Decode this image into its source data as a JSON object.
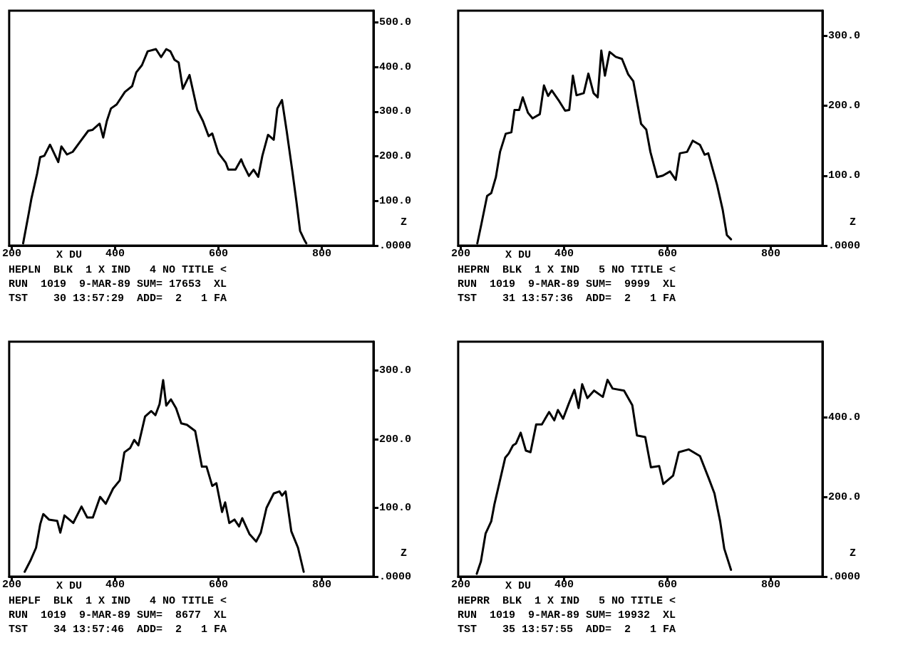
{
  "chart_data": [
    {
      "type": "line",
      "xlabel": "X DU",
      "ylabel": "Z",
      "color": "#000000",
      "xlim": [
        195,
        900
      ],
      "xticks": [
        200,
        400,
        600,
        800
      ],
      "ylim": [
        0,
        526
      ],
      "yticks": [
        {
          "value": 0,
          "label": ".0000"
        },
        {
          "value": 100,
          "label": "100.0"
        },
        {
          "value": 200,
          "label": "200.0"
        },
        {
          "value": 300,
          "label": "300.0"
        },
        {
          "value": 400,
          "label": "400.0"
        },
        {
          "value": 500,
          "label": "500.0"
        }
      ],
      "annotations": [
        "HEPLN  BLK  1 X IND   4 NO TITLE <",
        "RUN  1019  9-MAR-89 SUM= 17653  XL",
        "TST    30 13:57:29  ADD=  2   1 FA"
      ],
      "x": [
        222,
        233,
        238,
        249,
        255,
        263,
        274,
        290,
        296,
        307,
        318,
        332,
        348,
        356,
        370,
        377,
        384,
        392,
        403,
        419,
        433,
        441,
        452,
        463,
        479,
        489,
        499,
        507,
        515,
        523,
        531,
        544,
        559,
        570,
        581,
        588,
        600,
        614,
        619,
        633,
        644,
        649,
        659,
        668,
        677,
        685,
        696,
        707,
        714,
        723,
        732,
        743,
        751,
        758,
        767,
        770
      ],
      "values": [
        5,
        73,
        105,
        161,
        198,
        201,
        226,
        187,
        222,
        204,
        210,
        232,
        257,
        259,
        273,
        242,
        279,
        307,
        316,
        344,
        357,
        388,
        404,
        435,
        440,
        422,
        440,
        435,
        416,
        410,
        351,
        382,
        304,
        279,
        245,
        251,
        207,
        186,
        170,
        170,
        193,
        179,
        156,
        170,
        154,
        201,
        248,
        237,
        307,
        326,
        257,
        167,
        98,
        33,
        11,
        5
      ]
    },
    {
      "type": "line",
      "xlabel": "X DU",
      "ylabel": "Z",
      "color": "#000000",
      "xlim": [
        195,
        900
      ],
      "xticks": [
        200,
        400,
        600,
        800
      ],
      "ylim": [
        0,
        336
      ],
      "yticks": [
        {
          "value": 0,
          "label": ".0000"
        },
        {
          "value": 100,
          "label": "100.0"
        },
        {
          "value": 200,
          "label": "200.0"
        },
        {
          "value": 300,
          "label": "300.0"
        }
      ],
      "annotations": [
        "HEPRN  BLK  1 X IND   5 NO TITLE <",
        "RUN  1019  9-MAR-89 SUM=  9999  XL",
        "TST    31 13:57:36  ADD=  2   1 FA"
      ],
      "x": [
        232,
        240,
        251,
        259,
        268,
        276,
        287,
        298,
        304,
        313,
        320,
        330,
        339,
        353,
        361,
        369,
        376,
        391,
        402,
        410,
        417,
        424,
        438,
        447,
        457,
        465,
        472,
        479,
        488,
        500,
        512,
        524,
        534,
        549,
        559,
        567,
        580,
        591,
        605,
        616,
        624,
        638,
        649,
        663,
        672,
        679,
        696,
        707,
        715,
        723
      ],
      "values": [
        3,
        31,
        71,
        75,
        98,
        134,
        160,
        162,
        194,
        194,
        212,
        190,
        182,
        188,
        229,
        214,
        222,
        206,
        193,
        194,
        243,
        215,
        218,
        246,
        218,
        212,
        279,
        243,
        277,
        270,
        267,
        245,
        235,
        174,
        166,
        134,
        98,
        100,
        106,
        94,
        132,
        134,
        150,
        144,
        130,
        132,
        87,
        51,
        15,
        9
      ]
    },
    {
      "type": "line",
      "xlabel": "X DU",
      "ylabel": "Z",
      "color": "#000000",
      "xlim": [
        195,
        900
      ],
      "xticks": [
        200,
        400,
        600,
        800
      ],
      "ylim": [
        0,
        342
      ],
      "yticks": [
        {
          "value": 0,
          "label": ".0000"
        },
        {
          "value": 100,
          "label": "100.0"
        },
        {
          "value": 200,
          "label": "200.0"
        },
        {
          "value": 300,
          "label": "300.0"
        }
      ],
      "annotations": [
        "HEPLF  BLK  1 X IND   4 NO TITLE <",
        "RUN  1019  9-MAR-89 SUM=  8677  XL",
        "TST    34 13:57:46  ADD=  2   1 FA"
      ],
      "x": [
        225,
        236,
        247,
        255,
        261,
        272,
        288,
        294,
        302,
        319,
        335,
        346,
        357,
        371,
        382,
        396,
        409,
        418,
        429,
        437,
        445,
        458,
        470,
        478,
        486,
        493,
        499,
        508,
        518,
        528,
        539,
        555,
        568,
        577,
        588,
        596,
        607,
        613,
        621,
        631,
        640,
        646,
        660,
        673,
        682,
        693,
        707,
        718,
        723,
        730,
        741,
        754,
        765
      ],
      "values": [
        7,
        23,
        42,
        76,
        91,
        83,
        81,
        64,
        89,
        78,
        102,
        86,
        86,
        116,
        106,
        128,
        140,
        181,
        187,
        199,
        191,
        233,
        241,
        235,
        251,
        286,
        249,
        258,
        245,
        223,
        221,
        212,
        160,
        160,
        132,
        136,
        94,
        108,
        78,
        83,
        73,
        85,
        62,
        51,
        64,
        100,
        121,
        124,
        118,
        124,
        66,
        42,
        7
      ]
    },
    {
      "type": "line",
      "xlabel": "X DU",
      "ylabel": "Z",
      "color": "#000000",
      "xlim": [
        195,
        900
      ],
      "xticks": [
        200,
        400,
        600,
        800
      ],
      "ylim": [
        0,
        591
      ],
      "yticks": [
        {
          "value": 0,
          "label": ".0000"
        },
        {
          "value": 200,
          "label": "200.0"
        },
        {
          "value": 400,
          "label": "400.0"
        }
      ],
      "annotations": [
        "HEPRR  BLK  1 X IND   5 NO TITLE <",
        "RUN  1019  9-MAR-89 SUM= 19932  XL",
        "TST    35 13:57:55  ADD=  2   1 FA"
      ],
      "x": [
        231,
        239,
        248,
        259,
        265,
        275,
        286,
        293,
        301,
        307,
        316,
        326,
        335,
        346,
        357,
        371,
        381,
        388,
        398,
        409,
        420,
        428,
        435,
        445,
        458,
        475,
        484,
        494,
        516,
        532,
        541,
        557,
        568,
        584,
        592,
        611,
        622,
        641,
        663,
        680,
        691,
        702,
        710,
        723
      ],
      "values": [
        7,
        38,
        108,
        139,
        181,
        237,
        299,
        310,
        330,
        335,
        362,
        317,
        313,
        383,
        383,
        414,
        393,
        419,
        397,
        435,
        470,
        424,
        484,
        449,
        468,
        452,
        495,
        473,
        468,
        431,
        355,
        351,
        275,
        278,
        233,
        254,
        313,
        320,
        303,
        247,
        209,
        139,
        70,
        17
      ]
    }
  ]
}
